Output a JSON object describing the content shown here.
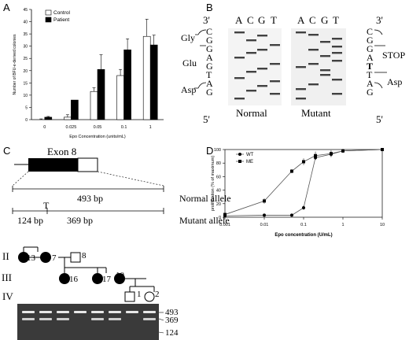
{
  "panels": {
    "A": "A",
    "B": "B",
    "C": "C",
    "D": "D"
  },
  "chart_data": [
    {
      "panel": "A",
      "type": "bar",
      "categories": [
        "0",
        "0.025",
        "0.05",
        "0.1",
        "1"
      ],
      "series": [
        {
          "name": "Control",
          "values": [
            0,
            1,
            11.5,
            18,
            34
          ],
          "errors": [
            0.3,
            1,
            1.5,
            2.5,
            7
          ]
        },
        {
          "name": "Patient",
          "values": [
            1,
            8,
            20.5,
            28.5,
            30.5
          ],
          "errors": [
            0.3,
            0,
            6,
            4.5,
            4
          ]
        }
      ],
      "xlabel": "Epo Concentration (units/mL)",
      "ylabel": "Number of BFU-e-derived colonies",
      "ylim": [
        0,
        45
      ],
      "yticks": [
        "0",
        "5",
        "10",
        "15",
        "20",
        "25",
        "30",
        "35",
        "40",
        "45"
      ],
      "legend_position": "top-left",
      "colors": {
        "Control": "#ffffff",
        "Patient": "#000000"
      }
    },
    {
      "panel": "D",
      "type": "line",
      "xscale": "log",
      "xlim": [
        0.001,
        10
      ],
      "xticks": [
        "0.001",
        "0.01",
        "0.1",
        "1",
        "10"
      ],
      "ylim": [
        0,
        100
      ],
      "yticks": [
        "0",
        "20",
        "40",
        "60",
        "80",
        "100"
      ],
      "xlabel": "Epo concentration (U/mL)",
      "ylabel": "proliferation (% of maximum)",
      "legend_position": "top-left",
      "series": [
        {
          "name": "WT",
          "marker": "circle",
          "x": [
            0.001,
            0.01,
            0.05,
            0.1,
            0.2,
            0.5,
            1,
            10
          ],
          "y": [
            2,
            3,
            3,
            14,
            88,
            93,
            98,
            100
          ],
          "err": [
            0,
            0,
            0,
            3,
            3,
            4,
            2,
            0
          ]
        },
        {
          "name": "ME",
          "marker": "square",
          "x": [
            0.001,
            0.01,
            0.05,
            0.1,
            0.2,
            0.5,
            1,
            10
          ],
          "y": [
            4,
            24,
            68,
            82,
            91,
            94,
            98,
            100
          ],
          "err": [
            0,
            4,
            3,
            5,
            6,
            5,
            3,
            0
          ]
        }
      ]
    }
  ],
  "gel_b": {
    "prime_top": "3'",
    "prime_bottom": "5'",
    "left_seq": [
      "C",
      "G",
      "G",
      "A",
      "G",
      "T",
      "A",
      "G"
    ],
    "right_seq": [
      "C",
      "G",
      "G",
      "A",
      "T",
      "T",
      "A",
      "G"
    ],
    "left_labels": {
      "gly": "Gly",
      "glu": "Glu",
      "asp": "Asp"
    },
    "right_labels": {
      "stop": "STOP",
      "asp": "Asp"
    },
    "lanes": [
      "A",
      "C",
      "G",
      "T"
    ],
    "normal_label": "Normal",
    "mutant_label": "Mutant"
  },
  "exon": {
    "title": "Exon 8",
    "normal_bp": "493 bp",
    "normal_label": "Normal allele",
    "mutation_mark": "T",
    "frag1": "124 bp",
    "frag2": "369 bp",
    "mutant_label": "Mutant allele"
  },
  "pedigree": {
    "generations": [
      "II",
      "III",
      "IV"
    ],
    "ids": [
      "13",
      "7",
      "8",
      "16",
      "17",
      "10",
      "1",
      "2"
    ]
  },
  "gel_bottom": {
    "sizes": [
      "493",
      "369",
      "124"
    ]
  }
}
